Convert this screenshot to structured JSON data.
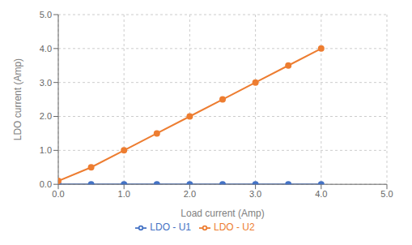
{
  "chart_data": {
    "type": "line",
    "xlabel": "Load current (Amp)",
    "ylabel": "LDO current (Amp)",
    "x": [
      0.0,
      0.5,
      1.0,
      1.5,
      2.0,
      2.5,
      3.0,
      3.5,
      4.0
    ],
    "series": [
      {
        "name": "LDO - U1",
        "color": "#4472C4",
        "values": [
          0.0,
          0.0,
          0.0,
          0.0,
          0.0,
          0.0,
          0.0,
          0.0,
          0.0
        ],
        "marker": "circle",
        "line_style": "solid"
      },
      {
        "name": "LDO - U2",
        "color": "#ED7D31",
        "values": [
          0.1,
          0.5,
          1.0,
          1.5,
          2.0,
          2.5,
          3.0,
          3.5,
          4.0
        ],
        "marker": "circle",
        "line_style": "solid"
      }
    ],
    "xlim": [
      0.0,
      5.0
    ],
    "ylim": [
      0.0,
      5.0
    ],
    "xticks": [
      {
        "value": 0,
        "label": "0.0"
      },
      {
        "value": 1,
        "label": "1.0"
      },
      {
        "value": 2,
        "label": "2.0"
      },
      {
        "value": 3,
        "label": "3.0"
      },
      {
        "value": 4,
        "label": "4.0"
      },
      {
        "value": 5,
        "label": "5.0"
      }
    ],
    "yticks": [
      {
        "value": 0,
        "label": "0.0"
      },
      {
        "value": 1,
        "label": "1.0"
      },
      {
        "value": 2,
        "label": "2.0"
      },
      {
        "value": 3,
        "label": "3.0"
      },
      {
        "value": 4,
        "label": "4.0"
      },
      {
        "value": 5,
        "label": "5.0"
      }
    ],
    "grid": true,
    "legend": "bottom"
  }
}
